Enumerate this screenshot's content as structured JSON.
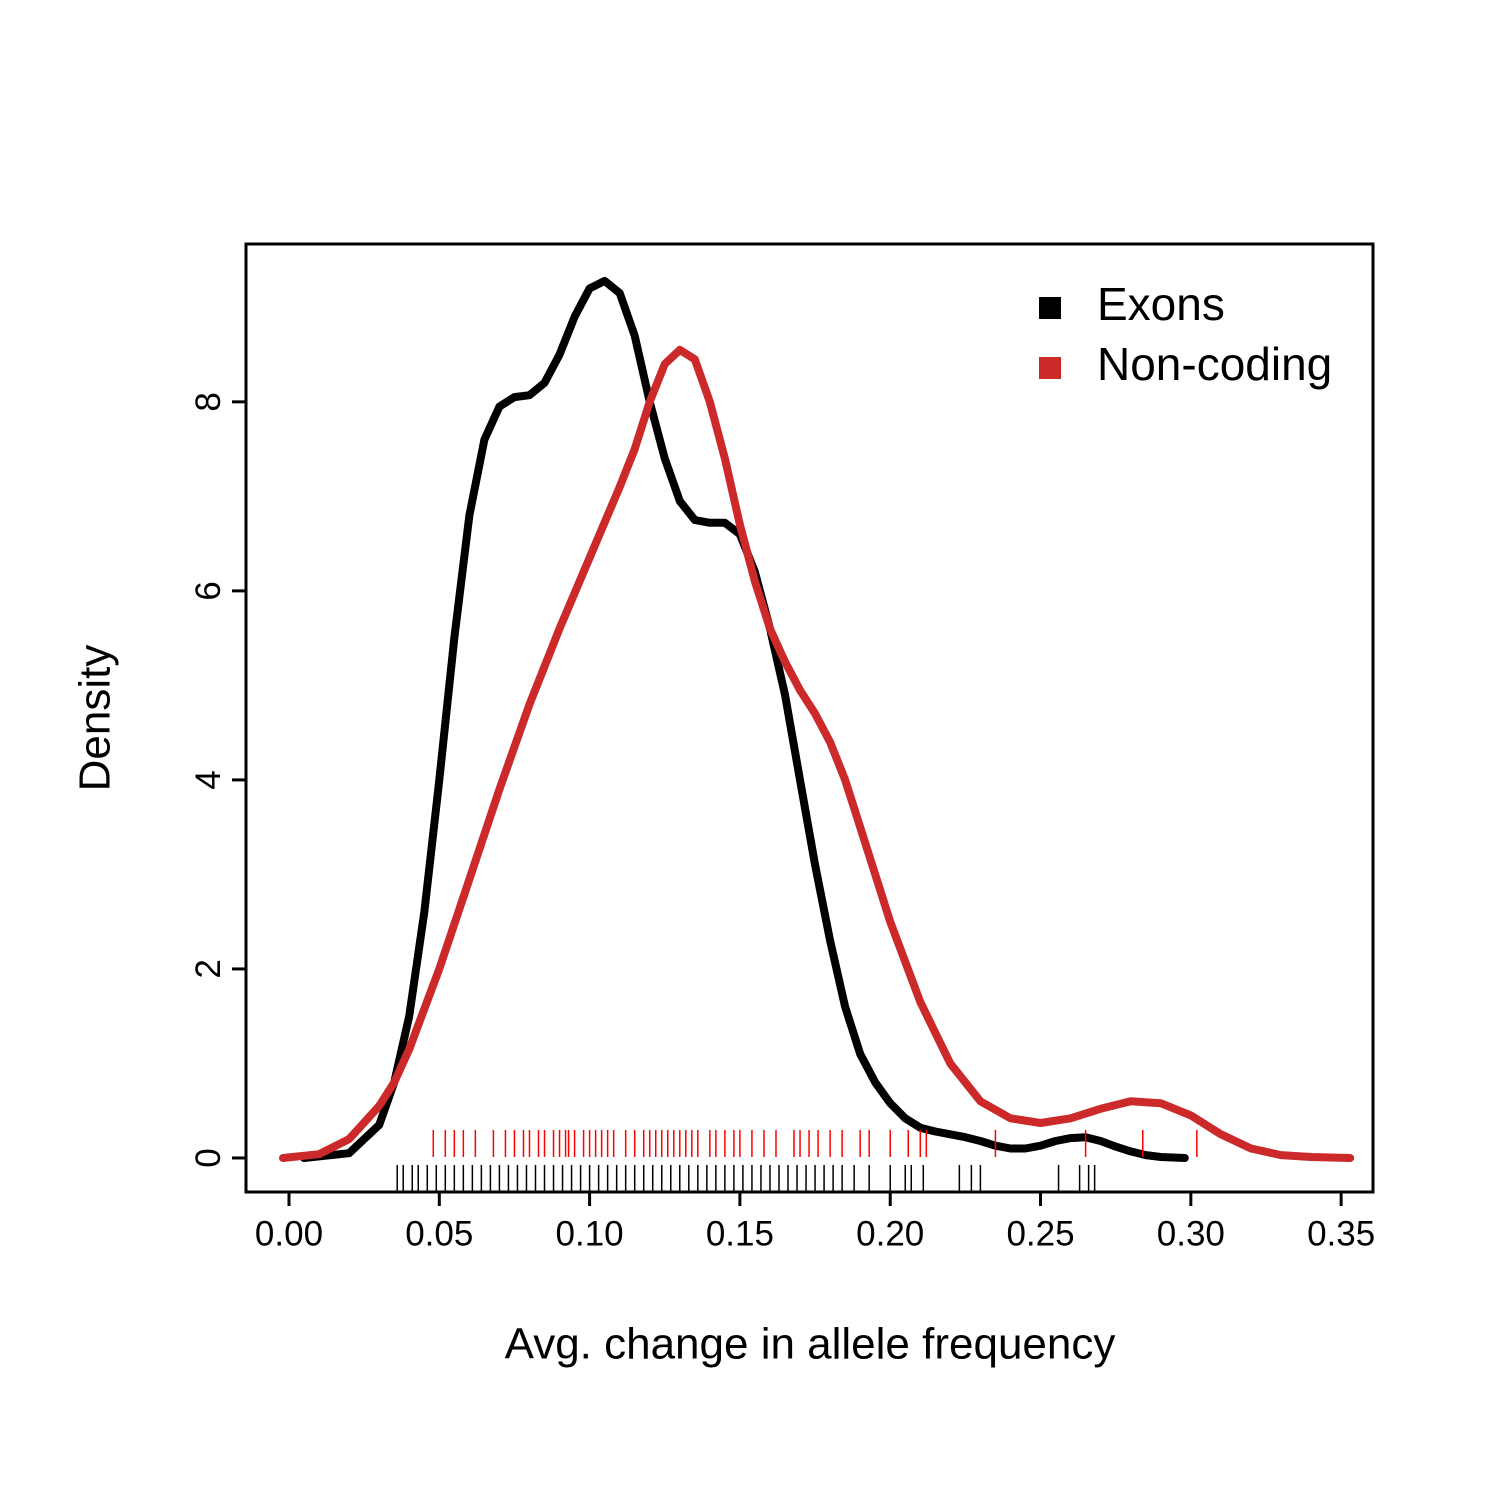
{
  "chart_data": {
    "type": "line",
    "xlabel": "Avg. change in allele frequency",
    "ylabel": "Density",
    "xlim": [
      -0.0143,
      0.3606
    ],
    "ylim": [
      -0.36,
      9.67
    ],
    "xticks": [
      {
        "value": 0,
        "label": "0.00"
      },
      0.05,
      {
        "value": 0.1,
        "label": "0.10"
      },
      0.15,
      {
        "value": 0.2,
        "label": "0.20"
      },
      0.25,
      {
        "value": 0.3,
        "label": "0.30"
      },
      0.35
    ],
    "yticks": [
      0,
      2,
      4,
      6,
      8
    ],
    "legend": "top-right",
    "series": [
      {
        "name": "Exons",
        "color": "#000000",
        "rug_color": "#000000",
        "x": [
          0.005,
          0.02,
          0.03,
          0.035,
          0.04,
          0.045,
          0.05,
          0.055,
          0.06,
          0.065,
          0.07,
          0.075,
          0.08,
          0.085,
          0.09,
          0.095,
          0.1,
          0.105,
          0.11,
          0.115,
          0.12,
          0.125,
          0.13,
          0.135,
          0.14,
          0.145,
          0.15,
          0.155,
          0.16,
          0.165,
          0.17,
          0.175,
          0.18,
          0.185,
          0.19,
          0.195,
          0.2,
          0.205,
          0.21,
          0.215,
          0.22,
          0.225,
          0.23,
          0.235,
          0.24,
          0.245,
          0.25,
          0.255,
          0.26,
          0.265,
          0.27,
          0.275,
          0.28,
          0.285,
          0.29,
          0.298
        ],
        "values": [
          0,
          0.05,
          0.35,
          0.8,
          1.5,
          2.6,
          4.0,
          5.5,
          6.8,
          7.6,
          7.95,
          8.05,
          8.07,
          8.2,
          8.5,
          8.9,
          9.2,
          9.28,
          9.15,
          8.7,
          8.0,
          7.4,
          6.95,
          6.75,
          6.72,
          6.72,
          6.6,
          6.2,
          5.6,
          4.9,
          4.0,
          3.1,
          2.3,
          1.6,
          1.1,
          0.8,
          0.58,
          0.42,
          0.32,
          0.28,
          0.25,
          0.22,
          0.18,
          0.13,
          0.1,
          0.1,
          0.13,
          0.18,
          0.21,
          0.22,
          0.18,
          0.12,
          0.07,
          0.03,
          0.01,
          0
        ],
        "rug": [
          0.036,
          0.038,
          0.041,
          0.043,
          0.046,
          0.049,
          0.052,
          0.055,
          0.058,
          0.061,
          0.064,
          0.067,
          0.07,
          0.073,
          0.076,
          0.079,
          0.082,
          0.085,
          0.088,
          0.091,
          0.094,
          0.097,
          0.1,
          0.103,
          0.106,
          0.109,
          0.112,
          0.115,
          0.118,
          0.121,
          0.124,
          0.127,
          0.13,
          0.133,
          0.136,
          0.139,
          0.142,
          0.145,
          0.148,
          0.151,
          0.154,
          0.157,
          0.16,
          0.163,
          0.166,
          0.169,
          0.172,
          0.175,
          0.178,
          0.181,
          0.184,
          0.188,
          0.193,
          0.2,
          0.205,
          0.207,
          0.211,
          0.223,
          0.227,
          0.23,
          0.256,
          0.263,
          0.266,
          0.268
        ]
      },
      {
        "name": "Non-coding",
        "color": "#cc2a2a",
        "rug_color": "#ff0000",
        "x": [
          -0.002,
          0.01,
          0.02,
          0.03,
          0.035,
          0.04,
          0.05,
          0.06,
          0.07,
          0.08,
          0.09,
          0.1,
          0.11,
          0.115,
          0.12,
          0.125,
          0.13,
          0.135,
          0.14,
          0.145,
          0.15,
          0.155,
          0.16,
          0.165,
          0.17,
          0.175,
          0.18,
          0.185,
          0.19,
          0.195,
          0.2,
          0.21,
          0.22,
          0.23,
          0.24,
          0.25,
          0.26,
          0.27,
          0.28,
          0.29,
          0.3,
          0.31,
          0.32,
          0.33,
          0.34,
          0.353
        ],
        "values": [
          0,
          0.04,
          0.2,
          0.55,
          0.8,
          1.15,
          2.0,
          2.95,
          3.9,
          4.8,
          5.6,
          6.35,
          7.1,
          7.5,
          8.0,
          8.4,
          8.55,
          8.45,
          8.0,
          7.4,
          6.7,
          6.1,
          5.6,
          5.25,
          4.95,
          4.7,
          4.4,
          4.0,
          3.5,
          3.0,
          2.5,
          1.65,
          1.0,
          0.6,
          0.42,
          0.37,
          0.42,
          0.52,
          0.6,
          0.58,
          0.45,
          0.25,
          0.1,
          0.03,
          0.01,
          0
        ],
        "rug": [
          0.048,
          0.052,
          0.055,
          0.058,
          0.062,
          0.068,
          0.072,
          0.075,
          0.078,
          0.08,
          0.083,
          0.085,
          0.088,
          0.09,
          0.092,
          0.093,
          0.095,
          0.098,
          0.1,
          0.102,
          0.104,
          0.106,
          0.108,
          0.112,
          0.115,
          0.118,
          0.12,
          0.122,
          0.124,
          0.126,
          0.128,
          0.13,
          0.132,
          0.134,
          0.136,
          0.14,
          0.142,
          0.145,
          0.148,
          0.15,
          0.154,
          0.158,
          0.162,
          0.168,
          0.17,
          0.173,
          0.176,
          0.18,
          0.184,
          0.19,
          0.193,
          0.2,
          0.206,
          0.21,
          0.212,
          0.235,
          0.265,
          0.284,
          0.302
        ]
      }
    ]
  }
}
